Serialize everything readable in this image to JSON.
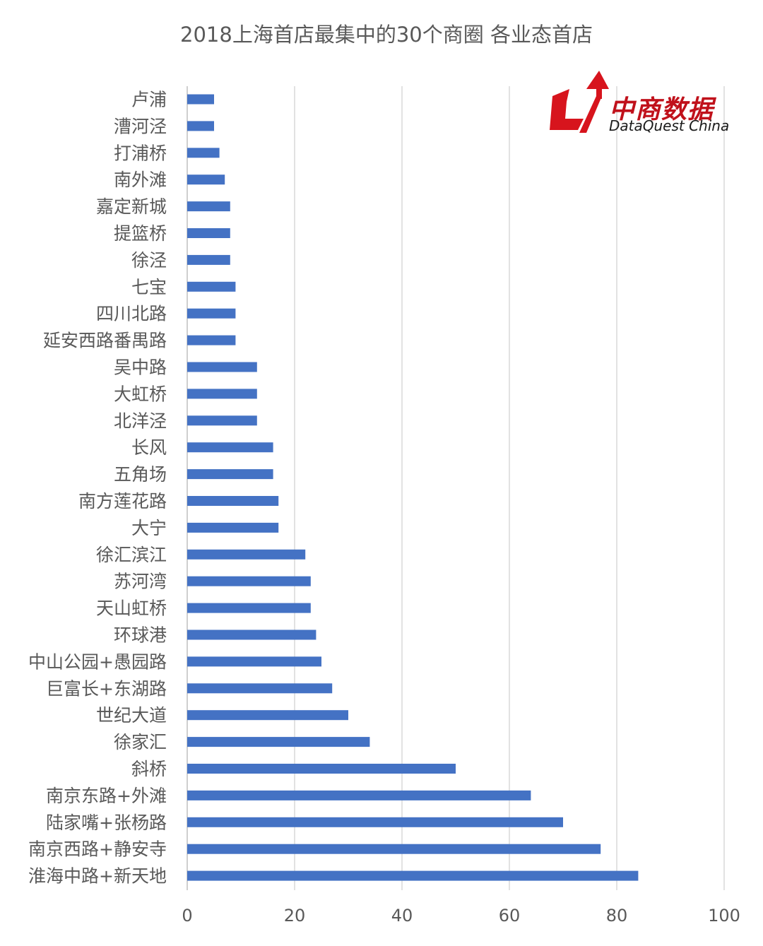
{
  "title": "2018上海首店最集中的30个商圈 各业态首店",
  "logo": {
    "cn": "中商数据",
    "en": "DataQuest China",
    "brand_color": "#d7141d"
  },
  "chart_data": {
    "type": "bar",
    "orientation": "horizontal",
    "title": "2018上海首店最集中的30个商圈 各业态首店",
    "bar_color": "#4472c4",
    "grid": true,
    "xlim": [
      0,
      100
    ],
    "ticks": [
      0,
      20,
      40,
      60,
      80,
      100
    ],
    "categories": [
      "卢浦",
      "漕河泾",
      "打浦桥",
      "南外滩",
      "嘉定新城",
      "提篮桥",
      "徐泾",
      "七宝",
      "四川北路",
      "延安西路番禺路",
      "吴中路",
      "大虹桥",
      "北洋泾",
      "长风",
      "五角场",
      "南方莲花路",
      "大宁",
      "徐汇滨江",
      "苏河湾",
      "天山虹桥",
      "环球港",
      "中山公园+愚园路",
      "巨富长+东湖路",
      "世纪大道",
      "徐家汇",
      "斜桥",
      "南京东路+外滩",
      "陆家嘴+张杨路",
      "南京西路+静安寺",
      "淮海中路+新天地"
    ],
    "values": [
      5,
      5,
      6,
      7,
      8,
      8,
      8,
      9,
      9,
      9,
      13,
      13,
      13,
      16,
      16,
      17,
      17,
      22,
      23,
      23,
      24,
      25,
      27,
      30,
      34,
      50,
      64,
      70,
      77,
      84
    ]
  }
}
